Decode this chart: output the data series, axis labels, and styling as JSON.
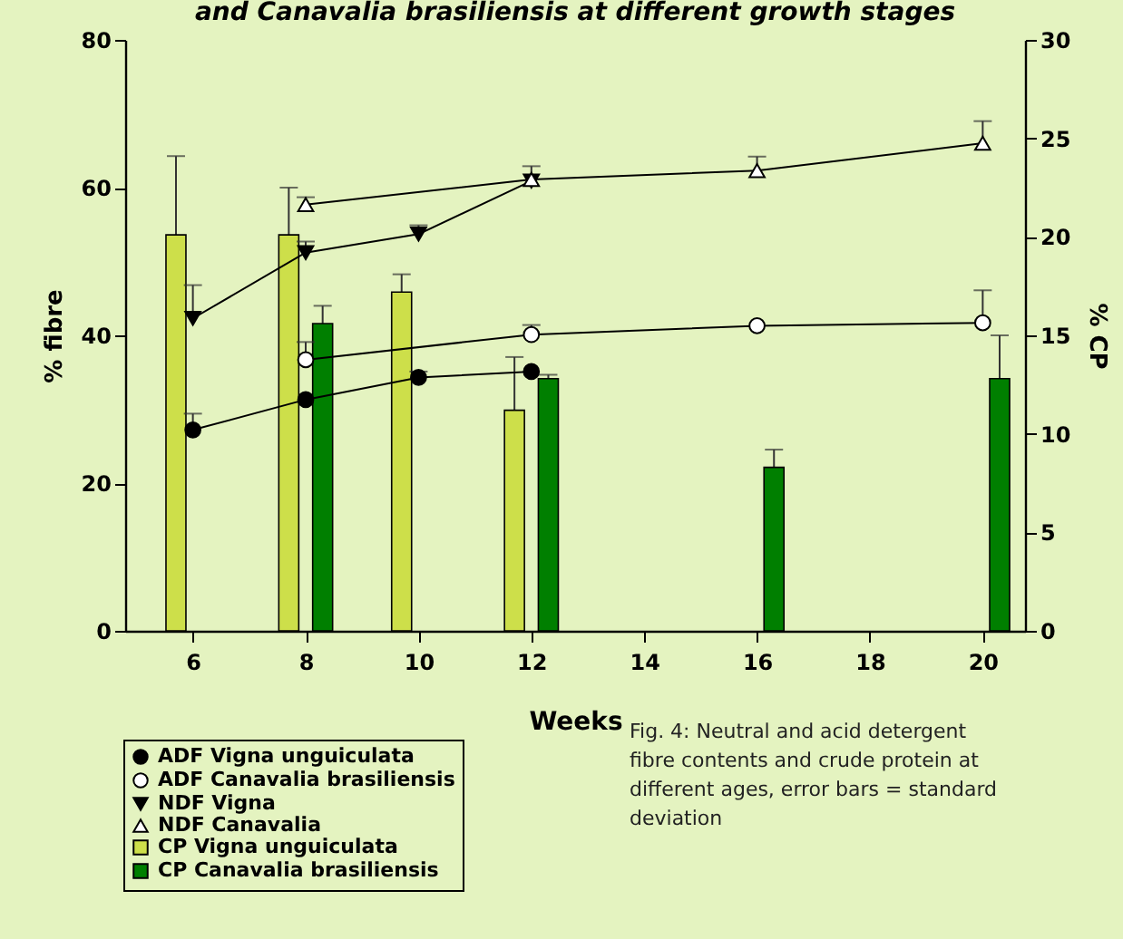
{
  "chart_data": {
    "type": "line",
    "title": "and Canavalia brasiliensis at different growth stages",
    "xlabel": "Weeks",
    "ylabel": "% fibre",
    "y2label": "% CP",
    "xlim": [
      4.8,
      20.75
    ],
    "xticks": [
      6,
      8,
      10,
      12,
      14,
      16,
      18,
      20
    ],
    "ylim": [
      0,
      80
    ],
    "yticks": [
      0,
      20,
      40,
      60,
      80
    ],
    "y2lim": [
      0,
      30
    ],
    "y2ticks": [
      0,
      5,
      10,
      15,
      20,
      25,
      30
    ],
    "grid": false,
    "legend": "bottom left",
    "series": [
      {
        "name": "ADF Vigna unguiculata",
        "axis": "y",
        "color": "#000000",
        "marker": "circle",
        "x": [
          6,
          8,
          10,
          12
        ],
        "values": [
          27.2,
          31.3,
          34.3,
          35.1
        ],
        "errors": [
          [
            27.2,
            29.4
          ],
          null,
          [
            34.3,
            35.1
          ],
          null
        ]
      },
      {
        "name": "ADF Canavalia brasiliensis",
        "axis": "y",
        "color": "#ffffff",
        "marker": "circle",
        "x": [
          8,
          12,
          16,
          20
        ],
        "values": [
          36.7,
          40.1,
          41.3,
          41.7
        ],
        "errors": [
          [
            36.7,
            39.1
          ],
          [
            40.1,
            41.4
          ],
          null,
          [
            41.7,
            46.1
          ]
        ]
      },
      {
        "name": "NDF Vigna",
        "axis": "y",
        "color": "#000000",
        "marker": "triangle-down",
        "x": [
          6,
          8,
          10,
          12
        ],
        "values": [
          42.3,
          51.2,
          53.7,
          60.9
        ],
        "errors": [
          [
            42.3,
            46.8
          ],
          [
            51.2,
            52.7
          ],
          [
            53.7,
            54.9
          ],
          null
        ]
      },
      {
        "name": "NDF Canavalia",
        "axis": "y",
        "color": "#ffffff",
        "marker": "triangle-up",
        "x": [
          8,
          12,
          16,
          20
        ],
        "values": [
          57.7,
          61.1,
          62.3,
          66.0
        ],
        "errors": [
          [
            57.7,
            58.7
          ],
          [
            61.1,
            62.9
          ],
          [
            62.3,
            64.2
          ],
          [
            66.0,
            69.0
          ]
        ]
      },
      {
        "name": "CP Vigna unguiculata",
        "type": "bar",
        "axis": "y2",
        "color": "#cddf4a",
        "marker": "square",
        "x": [
          5.7,
          7.7,
          9.7,
          11.7
        ],
        "values": [
          20.1,
          20.1,
          17.2,
          11.2
        ],
        "errors": [
          [
            20.1,
            24.1
          ],
          [
            20.1,
            22.5
          ],
          [
            17.2,
            18.1
          ],
          [
            11.2,
            13.9
          ]
        ]
      },
      {
        "name": "CP Canavalia brasiliensis",
        "type": "bar",
        "axis": "y2",
        "color": "#007f00",
        "marker": "square",
        "x": [
          8.3,
          12.3,
          16.3,
          20.3
        ],
        "values": [
          15.6,
          12.8,
          8.3,
          12.8
        ],
        "errors": [
          [
            15.6,
            16.5
          ],
          [
            12.8,
            13.0
          ],
          [
            8.3,
            9.2
          ],
          [
            12.8,
            15.0
          ]
        ]
      }
    ],
    "annotations": [
      "Fig. 4: Neutral and acid detergent fibre contents and crude protein at different ages, error bars = standard deviation"
    ]
  }
}
